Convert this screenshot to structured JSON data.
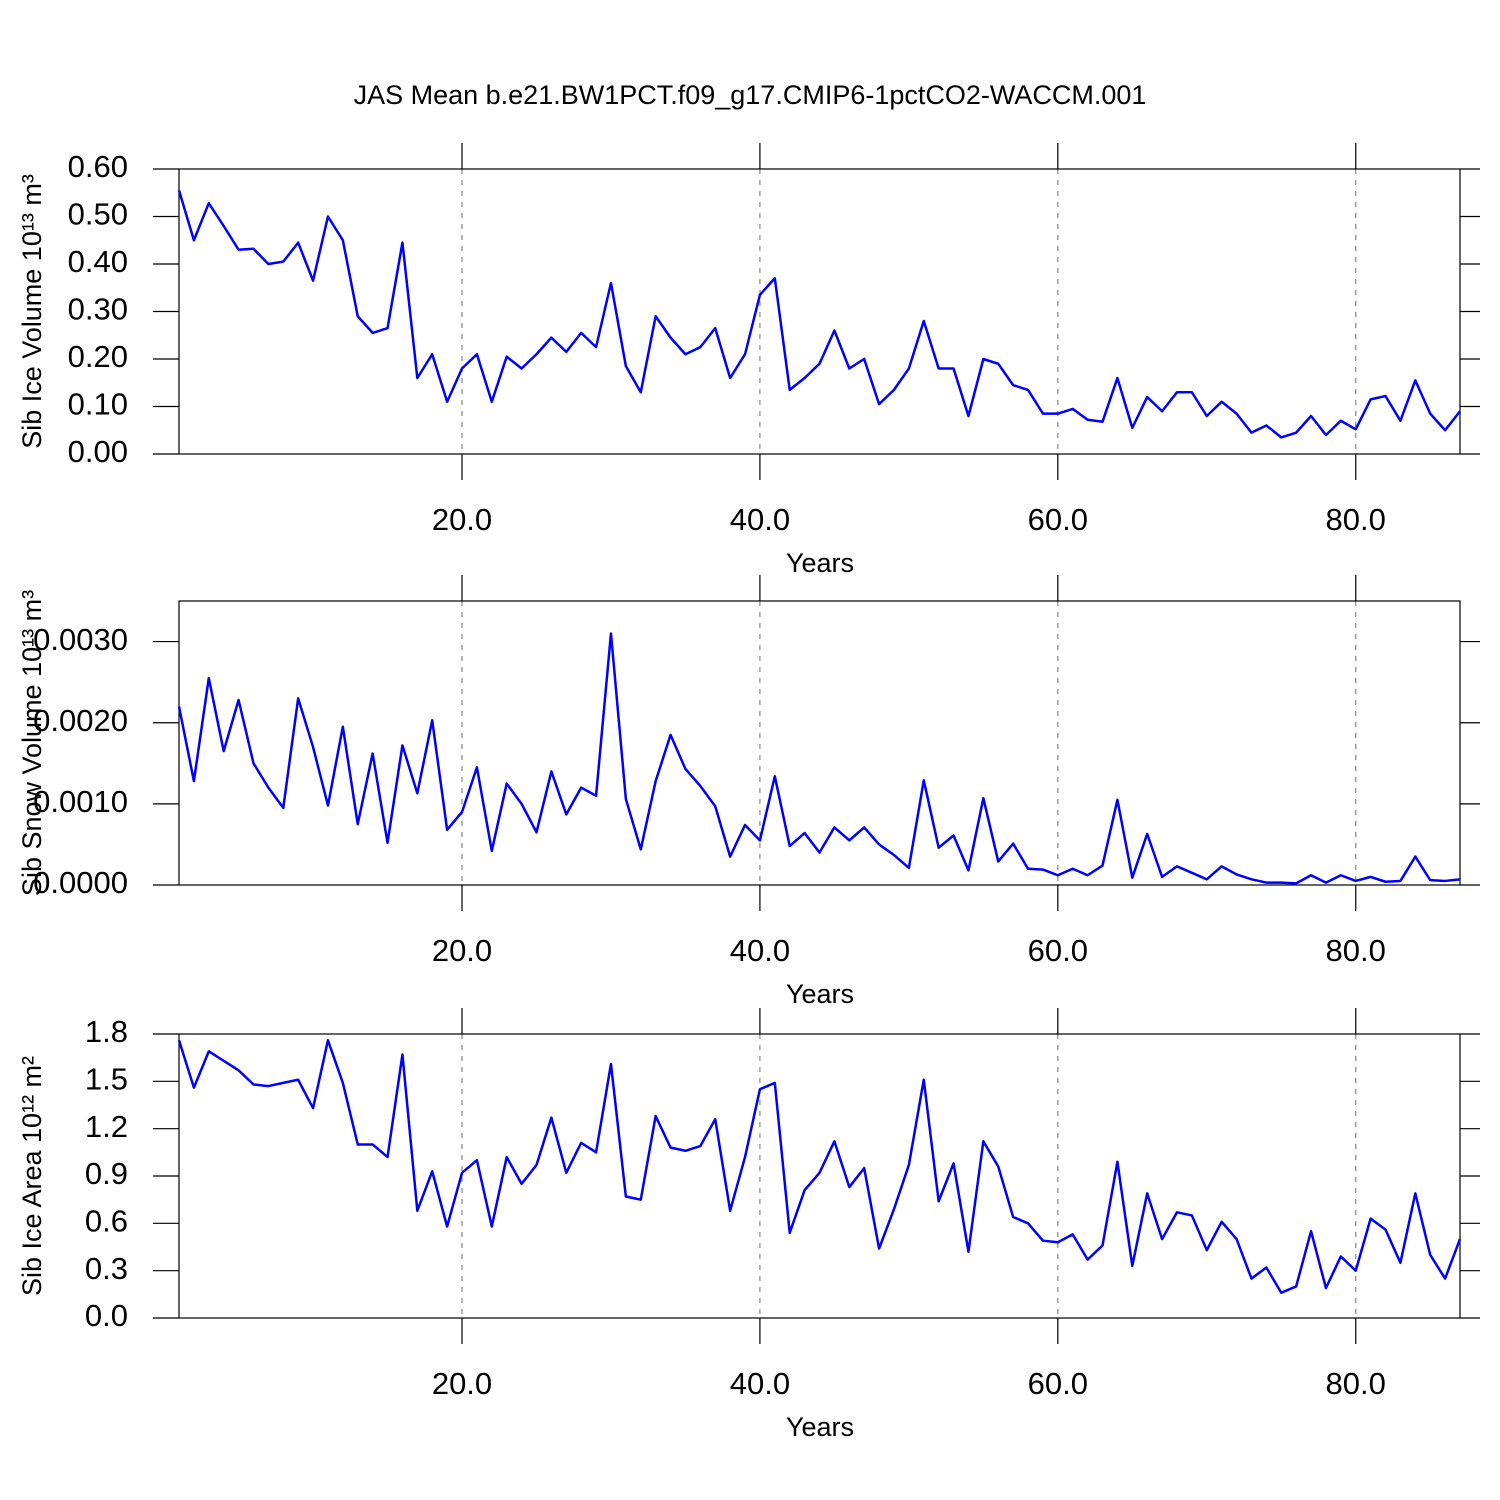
{
  "chart_data": [
    {
      "type": "line",
      "title": "JAS Mean b.e21.BW1PCT.f09_g17.CMIP6-1pctCO2-WACCM.001",
      "xlabel": "Years",
      "ylabel": "Sib Ice Volume 10¹³ m³",
      "color": "#0000ff",
      "grid": true,
      "x": [
        1,
        2,
        3,
        4,
        5,
        6,
        7,
        8,
        9,
        10,
        11,
        12,
        13,
        14,
        15,
        16,
        17,
        18,
        19,
        20,
        21,
        22,
        23,
        24,
        25,
        26,
        27,
        28,
        29,
        30,
        31,
        32,
        33,
        34,
        35,
        36,
        37,
        38,
        39,
        40,
        41,
        42,
        43,
        44,
        45,
        46,
        47,
        48,
        49,
        50,
        51,
        52,
        53,
        54,
        55,
        56,
        57,
        58,
        59,
        60,
        61,
        62,
        63,
        64,
        65,
        66,
        67,
        68,
        69,
        70,
        71,
        72,
        73,
        74,
        75,
        76,
        77,
        78,
        79,
        80,
        81,
        82,
        83,
        84,
        85,
        86,
        87
      ],
      "values": [
        0.555,
        0.45,
        0.528,
        0.48,
        0.43,
        0.432,
        0.4,
        0.405,
        0.445,
        0.365,
        0.5,
        0.45,
        0.29,
        0.255,
        0.265,
        0.445,
        0.16,
        0.21,
        0.11,
        0.18,
        0.21,
        0.11,
        0.205,
        0.18,
        0.21,
        0.245,
        0.215,
        0.255,
        0.225,
        0.36,
        0.185,
        0.13,
        0.29,
        0.245,
        0.21,
        0.225,
        0.265,
        0.16,
        0.21,
        0.335,
        0.37,
        0.135,
        0.16,
        0.19,
        0.26,
        0.18,
        0.2,
        0.105,
        0.135,
        0.18,
        0.28,
        0.18,
        0.18,
        0.08,
        0.2,
        0.19,
        0.145,
        0.135,
        0.085,
        0.085,
        0.095,
        0.072,
        0.068,
        0.16,
        0.055,
        0.12,
        0.09,
        0.13,
        0.13,
        0.08,
        0.11,
        0.085,
        0.045,
        0.06,
        0.035,
        0.045,
        0.08,
        0.04,
        0.07,
        0.052,
        0.115,
        0.122,
        0.07,
        0.155,
        0.085,
        0.05,
        0.09
      ],
      "xlim": [
        1,
        87
      ],
      "xticks": [
        {
          "value": 20,
          "label": "20.0"
        },
        {
          "value": 40,
          "label": "40.0"
        },
        {
          "value": 60,
          "label": "60.0"
        },
        {
          "value": 80,
          "label": "80.0"
        }
      ],
      "ylim": [
        0,
        0.6
      ],
      "yticks": [
        {
          "value": 0,
          "label": "0.00"
        },
        {
          "value": 0.1,
          "label": "0.10"
        },
        {
          "value": 0.2,
          "label": "0.20"
        },
        {
          "value": 0.3,
          "label": "0.30"
        },
        {
          "value": 0.4,
          "label": "0.40"
        },
        {
          "value": 0.5,
          "label": "0.50"
        },
        {
          "value": 0.6,
          "label": "0.60"
        }
      ]
    },
    {
      "type": "line",
      "xlabel": "Years",
      "ylabel": "Sib Snow Volume 10¹³ m³",
      "color": "#0000ff",
      "grid": true,
      "x": [
        1,
        2,
        3,
        4,
        5,
        6,
        7,
        8,
        9,
        10,
        11,
        12,
        13,
        14,
        15,
        16,
        17,
        18,
        19,
        20,
        21,
        22,
        23,
        24,
        25,
        26,
        27,
        28,
        29,
        30,
        31,
        32,
        33,
        34,
        35,
        36,
        37,
        38,
        39,
        40,
        41,
        42,
        43,
        44,
        45,
        46,
        47,
        48,
        49,
        50,
        51,
        52,
        53,
        54,
        55,
        56,
        57,
        58,
        59,
        60,
        61,
        62,
        63,
        64,
        65,
        66,
        67,
        68,
        69,
        70,
        71,
        72,
        73,
        74,
        75,
        76,
        77,
        78,
        79,
        80,
        81,
        82,
        83,
        84,
        85,
        86,
        87
      ],
      "values": [
        0.0022,
        0.00128,
        0.00255,
        0.00165,
        0.00228,
        0.0015,
        0.0012,
        0.00095,
        0.0023,
        0.0017,
        0.00098,
        0.00195,
        0.00075,
        0.00162,
        0.00052,
        0.00172,
        0.00113,
        0.00203,
        0.00068,
        0.0009,
        0.00145,
        0.00042,
        0.00125,
        0.001,
        0.00065,
        0.0014,
        0.00087,
        0.0012,
        0.0011,
        0.0031,
        0.00106,
        0.00044,
        0.00128,
        0.00185,
        0.00143,
        0.00122,
        0.00097,
        0.00035,
        0.00074,
        0.00055,
        0.00134,
        0.00048,
        0.00064,
        0.0004,
        0.00071,
        0.00055,
        0.00071,
        0.0005,
        0.00037,
        0.00021,
        0.00129,
        0.00046,
        0.00061,
        0.00018,
        0.00107,
        0.00029,
        0.00051,
        0.0002,
        0.00019,
        0.00012,
        0.0002,
        0.00012,
        0.00024,
        0.00105,
        9e-05,
        0.00063,
        0.0001,
        0.00023,
        0.00015,
        7e-05,
        0.00023,
        0.00013,
        7e-05,
        3e-05,
        3e-05,
        2e-05,
        0.00012,
        3e-05,
        0.00012,
        5e-05,
        0.0001,
        4e-05,
        5e-05,
        0.00035,
        6e-05,
        5e-05,
        7e-05
      ],
      "xlim": [
        1,
        87
      ],
      "xticks": [
        {
          "value": 20,
          "label": "20.0"
        },
        {
          "value": 40,
          "label": "40.0"
        },
        {
          "value": 60,
          "label": "60.0"
        },
        {
          "value": 80,
          "label": "80.0"
        }
      ],
      "ylim": [
        0,
        0.0035
      ],
      "yticks": [
        {
          "value": 0,
          "label": "0.0000"
        },
        {
          "value": 0.001,
          "label": "0.0010"
        },
        {
          "value": 0.002,
          "label": "0.0020"
        },
        {
          "value": 0.003,
          "label": "0.0030"
        }
      ]
    },
    {
      "type": "line",
      "xlabel": "Years",
      "ylabel": "Sib Ice Area 10¹² m²",
      "color": "#0000ff",
      "grid": true,
      "x": [
        1,
        2,
        3,
        4,
        5,
        6,
        7,
        8,
        9,
        10,
        11,
        12,
        13,
        14,
        15,
        16,
        17,
        18,
        19,
        20,
        21,
        22,
        23,
        24,
        25,
        26,
        27,
        28,
        29,
        30,
        31,
        32,
        33,
        34,
        35,
        36,
        37,
        38,
        39,
        40,
        41,
        42,
        43,
        44,
        45,
        46,
        47,
        48,
        49,
        50,
        51,
        52,
        53,
        54,
        55,
        56,
        57,
        58,
        59,
        60,
        61,
        62,
        63,
        64,
        65,
        66,
        67,
        68,
        69,
        70,
        71,
        72,
        73,
        74,
        75,
        76,
        77,
        78,
        79,
        80,
        81,
        82,
        83,
        84,
        85,
        86,
        87
      ],
      "values": [
        1.76,
        1.46,
        1.69,
        1.63,
        1.57,
        1.48,
        1.47,
        1.49,
        1.51,
        1.33,
        1.76,
        1.49,
        1.1,
        1.1,
        1.02,
        1.67,
        0.68,
        0.93,
        0.58,
        0.92,
        1.0,
        0.58,
        1.02,
        0.85,
        0.97,
        1.27,
        0.92,
        1.11,
        1.05,
        1.61,
        0.77,
        0.75,
        1.28,
        1.08,
        1.06,
        1.09,
        1.26,
        0.68,
        1.02,
        1.45,
        1.49,
        0.54,
        0.81,
        0.92,
        1.12,
        0.83,
        0.95,
        0.44,
        0.69,
        0.97,
        1.51,
        0.74,
        0.98,
        0.42,
        1.12,
        0.96,
        0.64,
        0.6,
        0.49,
        0.48,
        0.53,
        0.37,
        0.46,
        0.99,
        0.33,
        0.79,
        0.5,
        0.67,
        0.65,
        0.43,
        0.61,
        0.5,
        0.25,
        0.32,
        0.16,
        0.2,
        0.55,
        0.19,
        0.39,
        0.3,
        0.63,
        0.56,
        0.35,
        0.79,
        0.4,
        0.25,
        0.5
      ],
      "xlim": [
        1,
        87
      ],
      "xticks": [
        {
          "value": 20,
          "label": "20.0"
        },
        {
          "value": 40,
          "label": "40.0"
        },
        {
          "value": 60,
          "label": "60.0"
        },
        {
          "value": 80,
          "label": "80.0"
        }
      ],
      "ylim": [
        0,
        1.8
      ],
      "yticks": [
        {
          "value": 0,
          "label": "0.0"
        },
        0.3,
        0.6,
        0.9,
        1.2,
        1.5,
        1.8
      ]
    }
  ]
}
